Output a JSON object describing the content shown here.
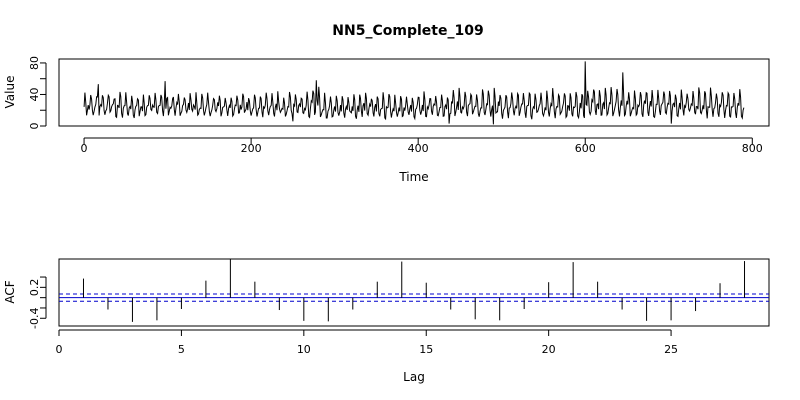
{
  "title": "NN5_Complete_109",
  "chart_data": [
    {
      "type": "line",
      "name": "time-series",
      "xlabel": "Time",
      "ylabel": "Value",
      "xlim": [
        -30,
        820
      ],
      "ylim": [
        0,
        85
      ],
      "x_ticks": [
        0,
        200,
        400,
        600,
        800
      ],
      "y_ticks": [
        0,
        40,
        80
      ],
      "n_points": 791,
      "period": 7,
      "weekly_pattern": [
        24,
        42,
        35,
        16,
        14,
        22,
        26
      ],
      "segments": [
        {
          "from": 0,
          "to": 270,
          "level": 25,
          "amplitude": 12
        },
        {
          "from": 270,
          "to": 285,
          "level": 28,
          "amplitude": 18
        },
        {
          "from": 285,
          "to": 440,
          "level": 24,
          "amplitude": 13
        },
        {
          "from": 440,
          "to": 600,
          "level": 26,
          "amplitude": 15
        },
        {
          "from": 600,
          "to": 650,
          "level": 28,
          "amplitude": 17
        },
        {
          "from": 650,
          "to": 791,
          "level": 27,
          "amplitude": 15
        }
      ],
      "spikes": [
        [
          600,
          82
        ],
        [
          645,
          68
        ],
        [
          278,
          58
        ],
        [
          17,
          53
        ],
        [
          97,
          57
        ],
        [
          437,
          3
        ],
        [
          490,
          2
        ],
        [
          703,
          3
        ],
        [
          250,
          6
        ]
      ]
    },
    {
      "type": "bar",
      "name": "acf",
      "xlabel": "Lag",
      "ylabel": "ACF",
      "xlim": [
        0,
        29
      ],
      "ylim": [
        -0.55,
        0.75
      ],
      "x_ticks": [
        0,
        5,
        10,
        15,
        20,
        25
      ],
      "y_ticks": [
        -0.4,
        0.2
      ],
      "ci": 0.07,
      "lags": [
        1,
        2,
        3,
        4,
        5,
        6,
        7,
        8,
        9,
        10,
        11,
        12,
        13,
        14,
        15,
        16,
        17,
        18,
        19,
        20,
        21,
        22,
        23,
        24,
        25,
        26,
        27,
        28
      ],
      "values": [
        0.37,
        -0.23,
        -0.47,
        -0.44,
        -0.22,
        0.33,
        0.74,
        0.31,
        -0.24,
        -0.45,
        -0.46,
        -0.23,
        0.31,
        0.7,
        0.29,
        -0.23,
        -0.42,
        -0.44,
        -0.22,
        0.3,
        0.69,
        0.31,
        -0.23,
        -0.45,
        -0.44,
        -0.26,
        0.28,
        0.71
      ]
    }
  ]
}
